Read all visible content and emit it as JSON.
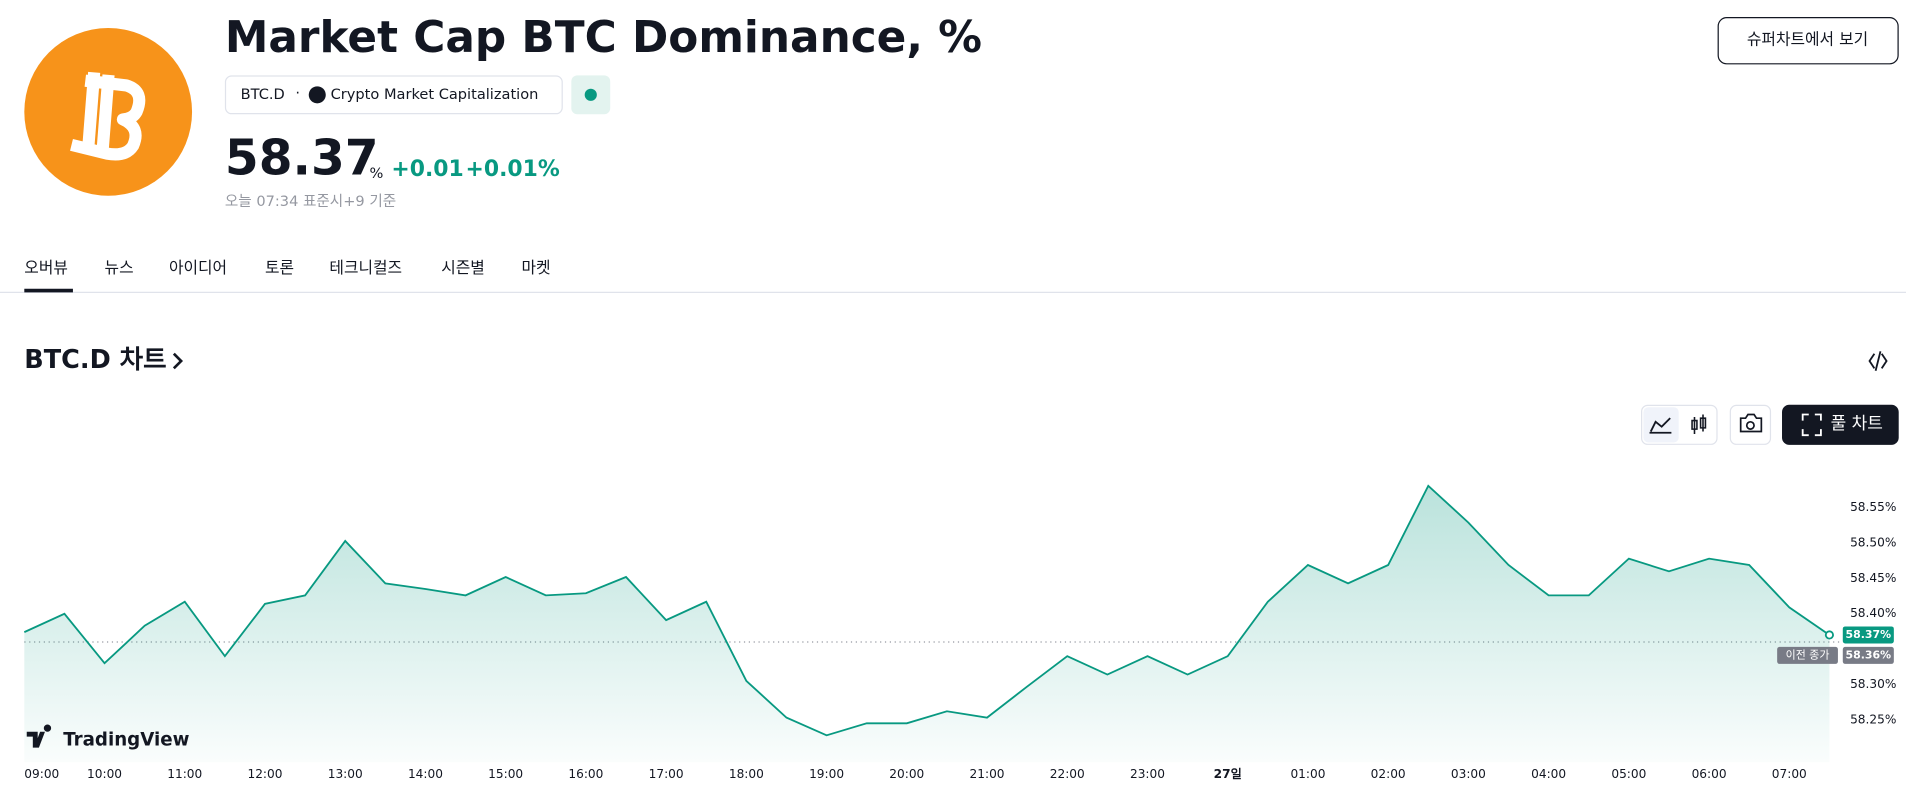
{
  "header": {
    "title": "Market Cap BTC Dominance, %",
    "symbol": "BTC.D",
    "exchange": "Crypto Market Capitalization",
    "price": "58.37",
    "unit": "%",
    "change": "+0.01",
    "change_percent": "+0.01%",
    "time_note": "오늘 07:34 표준시+9 기준",
    "button": "슈퍼차트에서 보기"
  },
  "tabs": [
    "오버뷰",
    "뉴스",
    "아이디어",
    "토론",
    "테크니컬즈",
    "시즌별",
    "마켓"
  ],
  "section_title": "BTC.D 차트",
  "full_chart_button": "풀 차트",
  "brand": "TradingView",
  "chart_data": {
    "type": "line",
    "color": "#089981",
    "categories": [
      "09:00",
      null,
      "10:00",
      null,
      "11:00",
      null,
      "12:00",
      null,
      "13:00",
      null,
      "14:00",
      null,
      "15:00",
      null,
      "16:00",
      null,
      "17:00",
      null,
      "18:00",
      null,
      "19:00",
      null,
      "20:00",
      null,
      "21:00",
      null,
      "22:00",
      null,
      "23:00",
      null,
      "27일",
      null,
      "01:00",
      null,
      "02:00",
      null,
      "03:00",
      null,
      "04:00",
      null,
      "05:00",
      null,
      "06:00",
      null,
      "07:00",
      null
    ],
    "values": [
      58.374,
      58.4,
      58.33,
      58.383,
      58.417,
      58.34,
      58.414,
      58.426,
      58.503,
      58.443,
      58.435,
      58.426,
      58.452,
      58.426,
      58.429,
      58.452,
      58.391,
      58.417,
      58.305,
      58.253,
      58.228,
      58.245,
      58.245,
      58.262,
      58.253,
      58.297,
      58.34,
      58.314,
      58.34,
      58.314,
      58.34,
      58.417,
      58.469,
      58.443,
      58.469,
      58.581,
      58.529,
      58.469,
      58.426,
      58.426,
      58.478,
      58.46,
      58.478,
      58.469,
      58.409,
      58.37
    ],
    "ylim": [
      58.19,
      58.62
    ],
    "yticks": [
      {
        "value": 58.25,
        "label": "58.25%"
      },
      {
        "value": 58.3,
        "label": "58.30%"
      },
      {
        "value": 58.4,
        "label": "58.40%"
      },
      {
        "value": 58.45,
        "label": "58.45%"
      },
      {
        "value": 58.5,
        "label": "58.50%"
      },
      {
        "value": 58.55,
        "label": "58.55%"
      }
    ],
    "grid": false,
    "last_label": "58.37%",
    "previous_close": {
      "value": 58.36,
      "label": "58.36%"
    },
    "previous_close_name": "이전 종가"
  }
}
